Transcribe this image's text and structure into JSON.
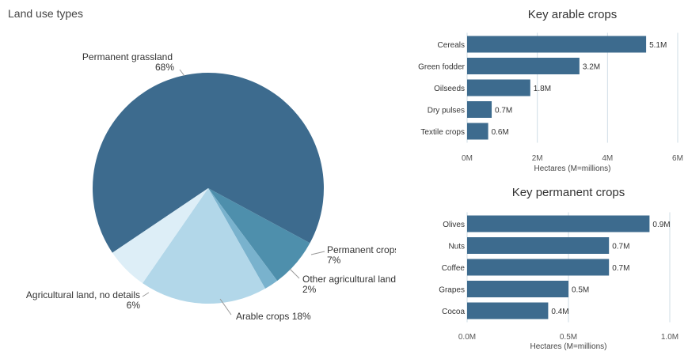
{
  "chart_data": [
    {
      "type": "pie",
      "title": "Land use types",
      "slices": [
        {
          "label": "Permanent grassland",
          "value": 68,
          "display": "68%",
          "color": "#3d6b8e"
        },
        {
          "label": "Permanent crops",
          "value": 7,
          "display": "7%",
          "color": "#4e8fac"
        },
        {
          "label": "Other agricultural land",
          "value": 2,
          "display": "2%",
          "color": "#79b2cd"
        },
        {
          "label": "Arable crops",
          "value": 18,
          "display": "18%",
          "color": "#b2d7e9"
        },
        {
          "label": "Agricultural land, no details",
          "value": 6,
          "display": "6%",
          "color": "#ddeef7"
        }
      ]
    },
    {
      "type": "bar",
      "orientation": "horizontal",
      "title": "Key arable crops",
      "categories": [
        "Cereals",
        "Green fodder",
        "Oilseeds",
        "Dry pulses",
        "Textile crops"
      ],
      "values": [
        5.1,
        3.2,
        1.8,
        0.7,
        0.6
      ],
      "value_labels": [
        "5.1M",
        "3.2M",
        "1.8M",
        "0.7M",
        "0.6M"
      ],
      "xlabel": "Hectares (M=millions)",
      "xlim": [
        0,
        6
      ],
      "ticks": [
        0,
        2,
        4,
        6
      ],
      "tick_labels": [
        "0M",
        "2M",
        "4M",
        "6M"
      ],
      "color": "#3d6b8e"
    },
    {
      "type": "bar",
      "orientation": "horizontal",
      "title": "Key permanent crops",
      "categories": [
        "Olives",
        "Nuts",
        "Coffee",
        "Grapes",
        "Cocoa"
      ],
      "values": [
        0.9,
        0.7,
        0.7,
        0.5,
        0.4
      ],
      "value_labels": [
        "0.9M",
        "0.7M",
        "0.7M",
        "0.5M",
        "0.4M"
      ],
      "xlabel": "Hectares (M=millions)",
      "xlim": [
        0,
        1.0
      ],
      "ticks": [
        0,
        0.5,
        1.0
      ],
      "tick_labels": [
        "0.0M",
        "0.5M",
        "1.0M"
      ],
      "color": "#3d6b8e"
    }
  ]
}
